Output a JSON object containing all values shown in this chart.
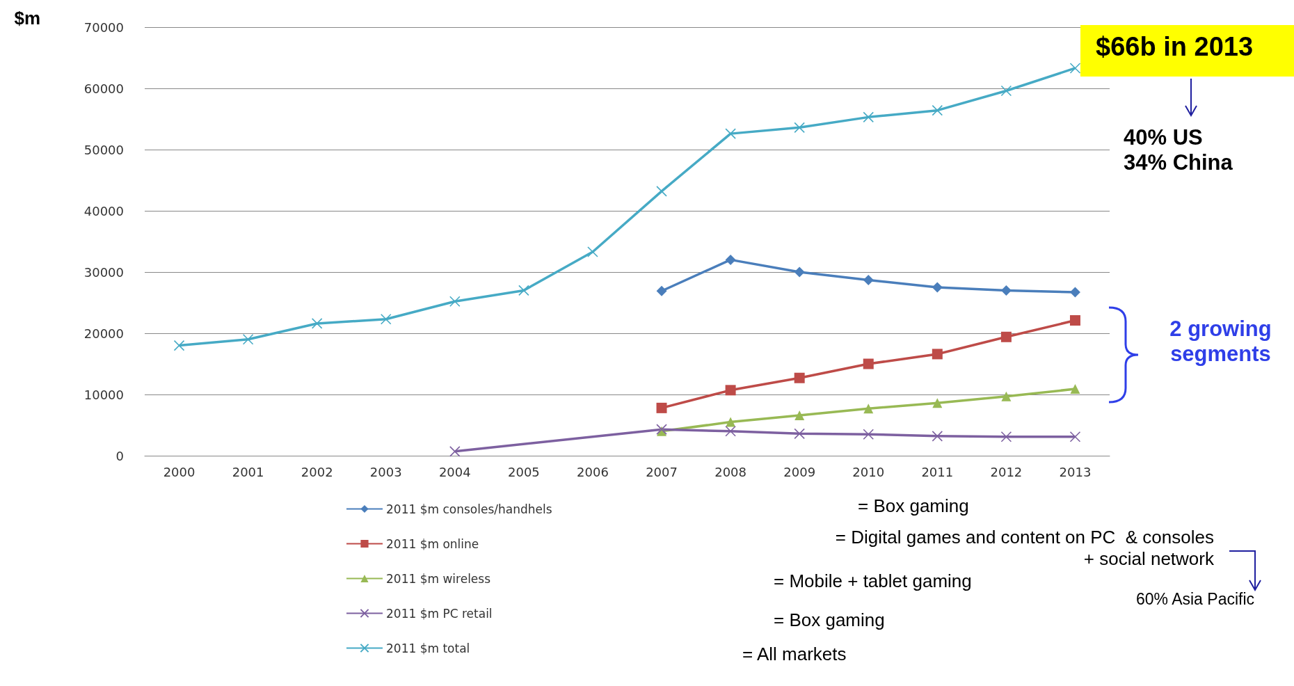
{
  "chart_data": {
    "type": "line",
    "ylabel": "$m",
    "categories": [
      "2000",
      "2001",
      "2002",
      "2003",
      "2004",
      "2005",
      "2006",
      "2007",
      "2008",
      "2009",
      "2010",
      "2011",
      "2012",
      "2013"
    ],
    "series": [
      {
        "name": "2011 $m consoles/handhels",
        "color": "#4a7ebb",
        "marker": "diamond",
        "values": [
          null,
          null,
          null,
          null,
          null,
          null,
          null,
          26900,
          32000,
          30000,
          28700,
          27500,
          27000,
          26700
        ]
      },
      {
        "name": "2011 $m online",
        "color": "#be4b48",
        "marker": "square",
        "values": [
          null,
          null,
          null,
          null,
          null,
          null,
          null,
          7800,
          10700,
          12700,
          15000,
          16600,
          19400,
          22100
        ]
      },
      {
        "name": "2011 $m wireless",
        "color": "#98b954",
        "marker": "triangle",
        "values": [
          null,
          null,
          null,
          null,
          null,
          null,
          null,
          4000,
          5500,
          6600,
          7700,
          8600,
          9700,
          10900
        ]
      },
      {
        "name": "2011 $m PC retail",
        "color": "#7d60a0",
        "marker": "cross",
        "values": [
          null,
          null,
          null,
          null,
          700,
          null,
          null,
          4300,
          4000,
          3600,
          3500,
          3200,
          3100,
          3100
        ]
      },
      {
        "name": "2011 $m total",
        "color": "#46aac5",
        "marker": "cross",
        "values": [
          18000,
          19000,
          21600,
          22300,
          25200,
          27000,
          33300,
          43200,
          52600,
          53600,
          55300,
          56400,
          59600,
          63300
        ]
      }
    ],
    "ylim": [
      0,
      70000
    ],
    "yticks": [
      0,
      10000,
      20000,
      30000,
      40000,
      50000,
      60000,
      70000
    ],
    "grid": "y",
    "legend": "bottom",
    "annotations": [
      "$66b in 2013",
      "40% US\n34% China",
      "2 growing segments",
      "= Box gaming",
      "= Digital games and content on PC  & consoles\n+ social network",
      "60% Asia Pacific",
      "= Mobile + tablet gaming",
      "= Box gaming",
      "= All markets"
    ]
  }
}
